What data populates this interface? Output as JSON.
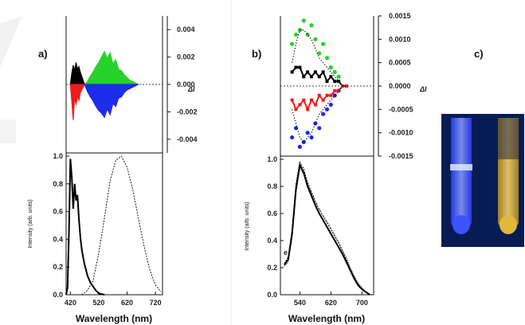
{
  "colors": {
    "black": "#000000",
    "green": "#27d22a",
    "red": "#ee1c1c",
    "blue": "#1d2ce8",
    "photo_bg": "#071c55",
    "tube_blue": "#5a72ff",
    "tube_yellow": "#e0b93a"
  },
  "chart_data": [
    {
      "panel": "a)",
      "label": "a)",
      "type": "line",
      "upper": {
        "type": "line",
        "y_axis_side": "right",
        "ylim": [
          -0.005,
          0.005
        ],
        "yticks": [
          0.004,
          0.002,
          0.0,
          -0.002,
          -0.004
        ],
        "ytick_labels": [
          "0.004",
          "0.002",
          "0.000",
          "-0.002",
          "-0.004"
        ],
        "ylabel": "ΔI",
        "series": [
          {
            "color": "black",
            "x": [
              420,
              425,
              430,
              435,
              440,
              445,
              450,
              455,
              460,
              465,
              470
            ],
            "y": [
              0.0,
              0.0008,
              0.0014,
              0.001,
              0.0016,
              0.0011,
              0.0013,
              0.0009,
              0.0006,
              0.0003,
              0.0
            ]
          },
          {
            "color": "red",
            "x": [
              420,
              425,
              430,
              435,
              440,
              445,
              450,
              455,
              460,
              465,
              470
            ],
            "y": [
              0.0,
              -0.0012,
              -0.0026,
              -0.0009,
              -0.0015,
              -0.0008,
              -0.0012,
              -0.0006,
              -0.0004,
              -0.0002,
              0.0
            ]
          },
          {
            "color": "green",
            "x": [
              470,
              480,
              490,
              500,
              510,
              520,
              530,
              540,
              550,
              560,
              570,
              580,
              590,
              600,
              610,
              620,
              630,
              640,
              650,
              660
            ],
            "y": [
              0.0,
              0.0002,
              0.0006,
              0.0009,
              0.0013,
              0.0016,
              0.002,
              0.0024,
              0.0019,
              0.0023,
              0.0015,
              0.0018,
              0.0011,
              0.001,
              0.0007,
              0.0005,
              0.0003,
              0.0002,
              0.0001,
              0.0
            ]
          },
          {
            "color": "blue",
            "x": [
              470,
              480,
              490,
              500,
              510,
              520,
              530,
              540,
              550,
              560,
              570,
              580,
              590,
              600,
              610,
              620,
              630,
              640,
              650,
              660
            ],
            "y": [
              0.0,
              -0.0005,
              -0.0009,
              -0.0012,
              -0.0016,
              -0.0019,
              -0.0021,
              -0.0024,
              -0.0018,
              -0.0022,
              -0.0014,
              -0.0016,
              -0.001,
              -0.0009,
              -0.0006,
              -0.0004,
              -0.0003,
              -0.0002,
              -0.0001,
              0.0
            ]
          }
        ]
      },
      "lower": {
        "type": "line",
        "xlabel": "Wavelength (nm)",
        "ylabel": "Intensity (arb. units)",
        "xlim": [
          405,
          745
        ],
        "ylim": [
          0.0,
          1.0
        ],
        "xticks": [
          420,
          520,
          620,
          720
        ],
        "yticks": [
          0.0,
          0.2,
          0.4,
          0.6,
          0.8,
          1.0
        ],
        "ytick_labels": [
          "0.0",
          "0.2",
          "0.4",
          "0.6",
          "0.8",
          "1.0"
        ],
        "series": [
          {
            "style": "solid",
            "x": [
              405,
              410,
              415,
              420,
              425,
              430,
              435,
              440,
              445,
              450,
              455,
              460,
              465,
              470,
              475,
              480,
              490,
              500,
              510,
              520,
              540
            ],
            "y": [
              0.0,
              0.05,
              0.45,
              0.98,
              0.85,
              0.62,
              0.8,
              0.68,
              0.72,
              0.55,
              0.42,
              0.33,
              0.27,
              0.22,
              0.18,
              0.14,
              0.09,
              0.06,
              0.03,
              0.01,
              0.0
            ]
          },
          {
            "style": "dashed",
            "x": [
              460,
              480,
              500,
              520,
              540,
              560,
              580,
              600,
              620,
              640,
              660,
              680,
              700,
              720,
              740
            ],
            "y": [
              0.0,
              0.03,
              0.1,
              0.3,
              0.55,
              0.82,
              0.97,
              1.0,
              0.92,
              0.76,
              0.55,
              0.35,
              0.18,
              0.07,
              0.02
            ]
          }
        ]
      }
    },
    {
      "panel": "b)",
      "label": "b)",
      "type": "line",
      "upper": {
        "type": "line",
        "y_axis_side": "right",
        "ylim": [
          -0.0015,
          0.0015
        ],
        "yticks": [
          0.0015,
          0.001,
          0.0005,
          0.0,
          -0.0005,
          -0.001,
          -0.0015
        ],
        "ytick_labels": [
          "0.0015",
          "0.0010",
          "0.0005",
          "0.0000",
          "-0.0005",
          "-0.0010",
          "-0.0015"
        ],
        "ylabel": "ΔI",
        "series": [
          {
            "color": "green",
            "style": "dots",
            "x": [
              520,
              530,
              540,
              550,
              560,
              570,
              580,
              590,
              600,
              610,
              620,
              630,
              640
            ],
            "y": [
              0.0009,
              0.0011,
              0.0012,
              0.0014,
              0.0011,
              0.0013,
              0.001,
              0.0007,
              0.0009,
              0.0006,
              0.0004,
              0.0003,
              0.0002
            ]
          },
          {
            "color": "blue",
            "style": "dots",
            "x": [
              520,
              530,
              540,
              550,
              560,
              570,
              580,
              590,
              600,
              610,
              620,
              630,
              640
            ],
            "y": [
              -0.0011,
              -0.0009,
              -0.0013,
              -0.0012,
              -0.001,
              -0.0011,
              -0.0008,
              -0.0009,
              -0.0006,
              -0.0005,
              -0.0004,
              -0.0002,
              -0.0001
            ]
          },
          {
            "color": "black",
            "style": "line-markers",
            "x": [
              520,
              530,
              540,
              550,
              560,
              570,
              580,
              590,
              600,
              610,
              620,
              630,
              640,
              650,
              660
            ],
            "y": [
              0.0003,
              0.0004,
              0.0004,
              0.0002,
              0.0003,
              0.0002,
              0.0003,
              0.0002,
              0.0003,
              0.0001,
              0.0002,
              0.0001,
              0.0001,
              0.0,
              0.0
            ]
          },
          {
            "color": "red",
            "style": "line-markers",
            "x": [
              520,
              530,
              540,
              550,
              560,
              570,
              580,
              590,
              600,
              610,
              620,
              630,
              640,
              650,
              660
            ],
            "y": [
              -0.0003,
              -0.0005,
              -0.0004,
              -0.0003,
              -0.0005,
              -0.0003,
              -0.0004,
              -0.0002,
              -0.0003,
              -0.0002,
              -0.0002,
              -0.0001,
              -0.0001,
              0.0,
              0.0
            ]
          },
          {
            "color": "black",
            "style": "dotted",
            "x": [
              520,
              530,
              540,
              550,
              560,
              570,
              580,
              590,
              600,
              610,
              620,
              630,
              640,
              650,
              660
            ],
            "y": [
              0.0005,
              0.0009,
              0.0012,
              0.0012,
              0.0011,
              0.001,
              0.0008,
              0.0006,
              0.0005,
              0.0004,
              0.0003,
              0.0002,
              0.0001,
              0.0,
              0.0
            ]
          },
          {
            "color": "black",
            "style": "dotted",
            "x": [
              520,
              530,
              540,
              550,
              560,
              570,
              580,
              590,
              600,
              610,
              620,
              630,
              640,
              650,
              660
            ],
            "y": [
              -0.0005,
              -0.0008,
              -0.0011,
              -0.0012,
              -0.0011,
              -0.001,
              -0.0008,
              -0.0006,
              -0.0005,
              -0.0004,
              -0.0003,
              -0.0002,
              -0.0001,
              0.0,
              0.0
            ]
          }
        ]
      },
      "lower": {
        "type": "line",
        "xlabel": "Wavelength (nm)",
        "ylabel": "Intensity (arb. units)",
        "xlim": [
          490,
          730
        ],
        "ylim": [
          0.0,
          1.0
        ],
        "xticks": [
          540,
          620,
          700
        ],
        "yticks": [
          0.0,
          0.2,
          0.4,
          0.6,
          0.8,
          1.0
        ],
        "ytick_labels": [
          "0.0",
          "0.2",
          "0.4",
          "0.6",
          "0.8",
          "1.0"
        ],
        "annotation": "e",
        "series": [
          {
            "style": "solid",
            "x": [
              500,
              510,
              520,
              530,
              540,
              550,
              560,
              570,
              580,
              590,
              600,
              610,
              620,
              630,
              640,
              650,
              660,
              670,
              680,
              690,
              700,
              710,
              720
            ],
            "y": [
              0.22,
              0.26,
              0.45,
              0.78,
              0.96,
              0.9,
              0.8,
              0.73,
              0.66,
              0.6,
              0.55,
              0.5,
              0.45,
              0.4,
              0.35,
              0.3,
              0.24,
              0.18,
              0.12,
              0.07,
              0.04,
              0.02,
              0.0
            ]
          },
          {
            "style": "dashed",
            "x": [
              500,
              510,
              520,
              530,
              540,
              550,
              560,
              570,
              580,
              590,
              600,
              610,
              620,
              630,
              640,
              650,
              660,
              670,
              680,
              690,
              700,
              710,
              720
            ],
            "y": [
              0.23,
              0.28,
              0.48,
              0.82,
              0.98,
              0.93,
              0.83,
              0.76,
              0.69,
              0.63,
              0.58,
              0.53,
              0.48,
              0.43,
              0.38,
              0.32,
              0.26,
              0.19,
              0.13,
              0.08,
              0.05,
              0.02,
              0.0
            ]
          },
          {
            "style": "dotted",
            "x": [
              500,
              510,
              520,
              530,
              540,
              550,
              560,
              570,
              580,
              590,
              600,
              610,
              620,
              630,
              640,
              650,
              660,
              670,
              680,
              690,
              700,
              710,
              720
            ],
            "y": [
              0.21,
              0.24,
              0.42,
              0.75,
              0.93,
              0.89,
              0.82,
              0.75,
              0.69,
              0.63,
              0.58,
              0.54,
              0.49,
              0.44,
              0.39,
              0.33,
              0.27,
              0.2,
              0.14,
              0.09,
              0.05,
              0.02,
              0.0
            ]
          }
        ]
      }
    },
    {
      "panel": "c)",
      "label": "c)",
      "type": "photo",
      "tubes": [
        "blue-emission-tube",
        "yellow-emission-tube"
      ]
    }
  ]
}
